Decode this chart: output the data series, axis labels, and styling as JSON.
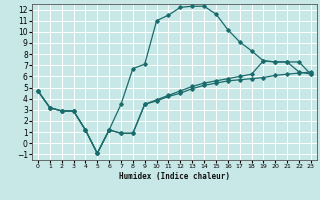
{
  "xlabel": "Humidex (Indice chaleur)",
  "background_color": "#c8e8e8",
  "grid_color": "#ffffff",
  "line_color": "#1a6b6b",
  "xlim": [
    -0.5,
    23.5
  ],
  "ylim": [
    -1.5,
    12.5
  ],
  "xticks": [
    0,
    1,
    2,
    3,
    4,
    5,
    6,
    7,
    8,
    9,
    10,
    11,
    12,
    13,
    14,
    15,
    16,
    17,
    18,
    19,
    20,
    21,
    22,
    23
  ],
  "yticks": [
    -1,
    0,
    1,
    2,
    3,
    4,
    5,
    6,
    7,
    8,
    9,
    10,
    11,
    12
  ],
  "series": [
    [
      4.7,
      3.2,
      2.9,
      2.9,
      1.2,
      -0.9,
      1.2,
      3.5,
      6.7,
      7.1,
      11.0,
      11.5,
      12.2,
      12.3,
      12.3,
      11.6,
      10.2,
      9.1,
      8.3,
      7.4,
      7.3,
      7.3,
      6.4,
      6.2
    ],
    [
      4.7,
      3.2,
      2.9,
      2.9,
      1.2,
      -0.9,
      1.2,
      0.9,
      0.9,
      3.5,
      3.8,
      4.2,
      4.5,
      4.9,
      5.2,
      5.4,
      5.6,
      5.7,
      5.8,
      5.9,
      6.1,
      6.2,
      6.3,
      6.4
    ],
    [
      4.7,
      3.2,
      2.9,
      2.9,
      1.2,
      -0.9,
      1.2,
      0.9,
      0.9,
      3.5,
      3.9,
      4.3,
      4.7,
      5.1,
      5.4,
      5.6,
      5.8,
      6.0,
      6.2,
      7.4,
      7.3,
      7.3,
      7.3,
      6.2
    ]
  ]
}
